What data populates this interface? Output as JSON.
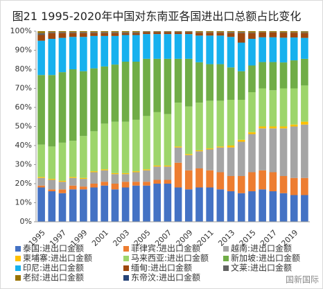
{
  "chart_data": {
    "type": "stacked_bar",
    "title": "图21 1995-2020年中国对东南亚各国进出口总额占比变化",
    "annotation": "国新国际",
    "categories": [
      "1995",
      null,
      "1997",
      null,
      "1999",
      null,
      "2001",
      null,
      "2003",
      null,
      "2005",
      null,
      "2007",
      null,
      "2009",
      null,
      "2011",
      null,
      "2013",
      null,
      "2015",
      null,
      "2017",
      null,
      "2019",
      null
    ],
    "ylim": [
      0,
      100
    ],
    "yticks": [
      {
        "value": 0,
        "label": "0%"
      },
      {
        "value": 10,
        "label": "10%"
      },
      {
        "value": 20,
        "label": "20%"
      },
      {
        "value": 30,
        "label": "30%"
      },
      {
        "value": 40,
        "label": "40%"
      },
      {
        "value": 50,
        "label": "50%"
      },
      {
        "value": 60,
        "label": "60%"
      },
      {
        "value": 70,
        "label": "70%"
      },
      {
        "value": 80,
        "label": "80%"
      },
      {
        "value": 90,
        "label": "90%"
      },
      {
        "value": 100,
        "label": "100%"
      }
    ],
    "series": [
      {
        "name": "泰国:进出口金额",
        "color": "#4472c4",
        "values": [
          18,
          16,
          15,
          17,
          17,
          18,
          19,
          17,
          18,
          19,
          19,
          20,
          20,
          18,
          17,
          18,
          18,
          17,
          16,
          15,
          16,
          17,
          16,
          15,
          14,
          14
        ]
      },
      {
        "name": "菲律宾:进出口金额",
        "color": "#ed7d31",
        "values": [
          1,
          1,
          2,
          2,
          1.5,
          2,
          2,
          3,
          3,
          2,
          2,
          2,
          2,
          13,
          10,
          10,
          9,
          9,
          8,
          9,
          10,
          10,
          10,
          9,
          9,
          9
        ]
      },
      {
        "name": "越南:进出口金额",
        "color": "#a5a5a5",
        "values": [
          4,
          5,
          4,
          4,
          4,
          6,
          6,
          5,
          4,
          5,
          6,
          7,
          7,
          8,
          8,
          9,
          11,
          13,
          15,
          18,
          20,
          22,
          23,
          25,
          27,
          28
        ]
      },
      {
        "name": "柬埔寨:进出口金额",
        "color": "#ffc000",
        "values": [
          0.5,
          0.5,
          0.5,
          0.5,
          0.5,
          0.5,
          0.5,
          0.5,
          0.5,
          0.5,
          0.5,
          0.5,
          0.5,
          0.5,
          0.5,
          0.5,
          0.5,
          0.5,
          1,
          1,
          1,
          1,
          1,
          1,
          1,
          1.5
        ]
      },
      {
        "name": "马来西亚:进出口金额",
        "color": "#9dd56b",
        "values": [
          17,
          17,
          20,
          19,
          22,
          21,
          24,
          27,
          27,
          27,
          28,
          28,
          27,
          23,
          25,
          25,
          25,
          24,
          24,
          21,
          21,
          20,
          19,
          20,
          19,
          19
        ]
      },
      {
        "name": "新加坡:进出口金额",
        "color": "#70ad47",
        "values": [
          36.5,
          37.5,
          37,
          37.5,
          34,
          33,
          30,
          30,
          31.5,
          30.5,
          30,
          28,
          29,
          23,
          25,
          21.2,
          19.2,
          19.2,
          17,
          15,
          14,
          13.8,
          14.8,
          13.6,
          14.7,
          14
        ]
      },
      {
        "name": "印尼:进出口金额",
        "color": "#17b1ee",
        "values": [
          18,
          19,
          18,
          17,
          18,
          17,
          16,
          15,
          14,
          14,
          13,
          13,
          13,
          13,
          13,
          14,
          15,
          15,
          16,
          15,
          14,
          13,
          13,
          13,
          12,
          11
        ]
      },
      {
        "name": "缅甸:进出口金额",
        "color": "#9e480e",
        "values": [
          3,
          3,
          2.5,
          2,
          2,
          1.5,
          1.5,
          1.5,
          1,
          1,
          1,
          1,
          1,
          1,
          1,
          1.5,
          1.5,
          1.5,
          2,
          5,
          3,
          2.5,
          2.5,
          2.5,
          2.5,
          2.5
        ]
      },
      {
        "name": "文莱:进出口金额",
        "color": "#636363",
        "values": [
          1,
          0.5,
          0.5,
          0.5,
          0.5,
          0.5,
          0.5,
          0.5,
          0.5,
          0.5,
          0.3,
          0.3,
          0.3,
          0.3,
          0.3,
          0.3,
          0.3,
          0.3,
          0.5,
          0.5,
          0.3,
          0.2,
          0.2,
          0.3,
          0.2,
          0.3
        ]
      },
      {
        "name": "老挝:进出口金额",
        "color": "#997300",
        "values": [
          1,
          0.5,
          0.5,
          0.5,
          0.5,
          0.5,
          0.5,
          0.5,
          0.5,
          0.5,
          0.2,
          0.2,
          0.2,
          0.2,
          0.2,
          0.5,
          0.5,
          0.5,
          0.5,
          0.5,
          0.7,
          0.5,
          0.5,
          0.6,
          0.6,
          0.6
        ]
      },
      {
        "name": "东帝汶:进出口金额",
        "color": "#264478",
        "values": [
          0,
          0,
          0,
          0,
          0,
          0,
          0,
          0,
          0,
          0,
          0,
          0,
          0,
          0,
          0,
          0,
          0,
          0,
          0,
          0,
          0,
          0,
          0,
          0,
          0,
          0.1
        ]
      }
    ]
  }
}
